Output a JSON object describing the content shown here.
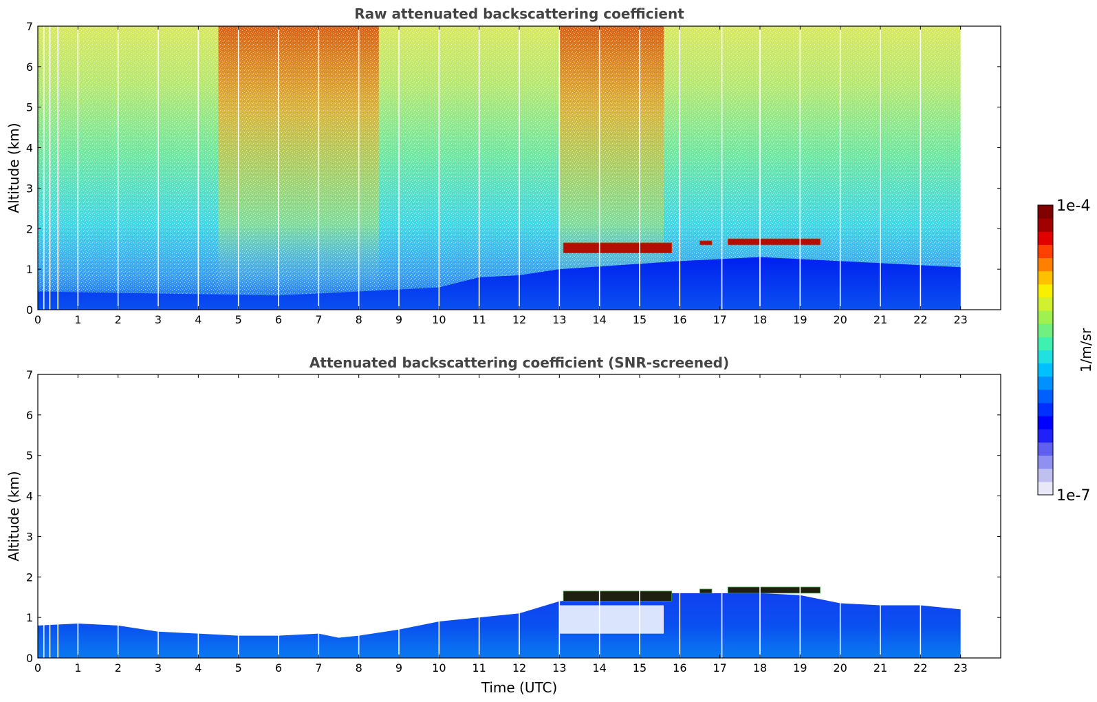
{
  "chart_data": [
    {
      "type": "heatmap",
      "title": "Raw attenuated backscattering coefficient",
      "xlabel": "",
      "ylabel": "Altitude (km)",
      "xlim": [
        0,
        24
      ],
      "ylim": [
        0,
        7
      ],
      "xticks": [
        "0",
        "1",
        "2",
        "3",
        "4",
        "5",
        "6",
        "7",
        "8",
        "9",
        "10",
        "11",
        "12",
        "13",
        "14",
        "15",
        "16",
        "17",
        "18",
        "19",
        "20",
        "21",
        "22",
        "23"
      ],
      "yticks": [
        "0",
        "1",
        "2",
        "3",
        "4",
        "5",
        "6",
        "7"
      ],
      "data_extent_x": [
        0,
        23
      ],
      "gap_times": [
        0.15,
        0.3,
        0.5,
        1.0,
        2.0,
        3.0,
        4.0,
        5.0,
        6.0,
        7.0,
        8.0,
        9.0,
        10.0,
        11.0,
        12.0,
        13.0,
        14.0,
        15.0,
        16.0,
        17.05,
        18.0,
        19.0,
        20.0,
        21.0,
        22.0
      ],
      "boundary_layer_top_km": [
        [
          0,
          0.45
        ],
        [
          3,
          0.4
        ],
        [
          6,
          0.35
        ],
        [
          8,
          0.45
        ],
        [
          10,
          0.55
        ],
        [
          11,
          0.8
        ],
        [
          12,
          0.85
        ],
        [
          13,
          1.0
        ],
        [
          16,
          1.2
        ],
        [
          18,
          1.3
        ],
        [
          20,
          1.2
        ],
        [
          23,
          1.05
        ]
      ],
      "cloud_layer": [
        {
          "x_start": 13.1,
          "x_end": 15.8,
          "base_km": 1.4,
          "top_km": 1.65
        },
        {
          "x_start": 16.5,
          "x_end": 16.8,
          "base_km": 1.6,
          "top_km": 1.7
        },
        {
          "x_start": 17.2,
          "x_end": 19.5,
          "base_km": 1.6,
          "top_km": 1.75
        }
      ],
      "noise_enhanced_periods": [
        [
          4.5,
          8.5
        ],
        [
          13.0,
          15.6
        ]
      ]
    },
    {
      "type": "heatmap",
      "title": "Attenuated backscattering coefficient (SNR-screened)",
      "xlabel": "Time (UTC)",
      "ylabel": "Altitude (km)",
      "xlim": [
        0,
        24
      ],
      "ylim": [
        0,
        7
      ],
      "xticks": [
        "0",
        "1",
        "2",
        "3",
        "4",
        "5",
        "6",
        "7",
        "8",
        "9",
        "10",
        "11",
        "12",
        "13",
        "14",
        "15",
        "16",
        "17",
        "18",
        "19",
        "20",
        "21",
        "22",
        "23"
      ],
      "yticks": [
        "0",
        "1",
        "2",
        "3",
        "4",
        "5",
        "6",
        "7"
      ],
      "data_extent_x": [
        0,
        23
      ],
      "gap_times": [
        0.15,
        0.3,
        0.5,
        1.0,
        2.0,
        3.0,
        4.0,
        5.0,
        6.0,
        7.0,
        8.0,
        9.0,
        10.0,
        11.0,
        12.0,
        13.0,
        14.0,
        15.0,
        16.0,
        17.05,
        18.0,
        19.0,
        20.0,
        21.0,
        22.0
      ],
      "screened_top_km": [
        [
          0,
          0.8
        ],
        [
          1,
          0.85
        ],
        [
          2,
          0.8
        ],
        [
          3,
          0.65
        ],
        [
          4,
          0.6
        ],
        [
          5,
          0.55
        ],
        [
          6,
          0.55
        ],
        [
          7,
          0.6
        ],
        [
          7.5,
          0.5
        ],
        [
          8,
          0.55
        ],
        [
          9,
          0.7
        ],
        [
          10,
          0.9
        ],
        [
          11,
          1.0
        ],
        [
          12,
          1.1
        ],
        [
          13,
          1.4
        ],
        [
          14,
          1.5
        ],
        [
          15,
          1.6
        ],
        [
          16,
          1.6
        ],
        [
          17,
          1.6
        ],
        [
          18,
          1.6
        ],
        [
          19,
          1.55
        ],
        [
          20,
          1.35
        ],
        [
          21,
          1.3
        ],
        [
          22,
          1.3
        ],
        [
          23,
          1.2
        ]
      ],
      "screened_gap": {
        "x_start": 13.0,
        "x_end": 15.6,
        "base_km": 0.6,
        "top_km": 1.3
      },
      "cloud_layer": [
        {
          "x_start": 13.1,
          "x_end": 15.8,
          "base_km": 1.4,
          "top_km": 1.65
        },
        {
          "x_start": 16.5,
          "x_end": 16.8,
          "base_km": 1.6,
          "top_km": 1.7
        },
        {
          "x_start": 17.2,
          "x_end": 19.5,
          "base_km": 1.6,
          "top_km": 1.75
        }
      ]
    }
  ],
  "colorbar": {
    "label": "1/m/sr",
    "max_label": "1e-4",
    "min_label": "1e-7",
    "scale": "log",
    "range": [
      1e-07,
      0.0001
    ],
    "colors": [
      "#e8e8f8",
      "#c0c0f0",
      "#9090f0",
      "#6060f0",
      "#2020f8",
      "#0000ff",
      "#0030ff",
      "#0060ff",
      "#0090ff",
      "#00c0ff",
      "#20e0e0",
      "#40f0b0",
      "#70f080",
      "#a0f050",
      "#d0f030",
      "#f8f000",
      "#ffc000",
      "#ff8000",
      "#ff4000",
      "#e00000",
      "#a00000",
      "#800000"
    ]
  }
}
